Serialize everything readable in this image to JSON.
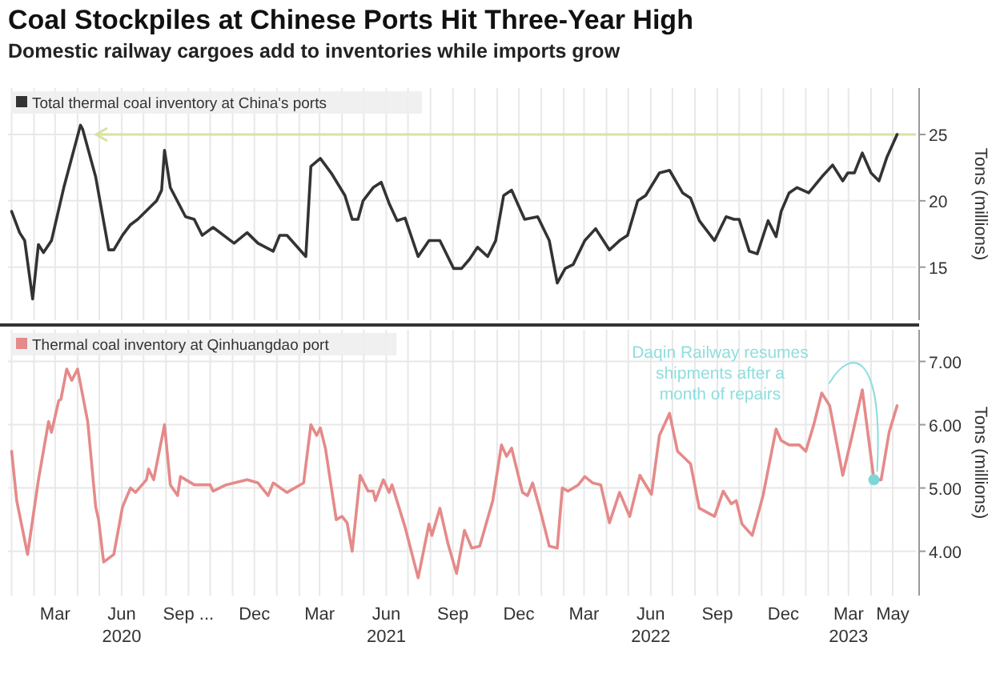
{
  "chart_data": [
    {
      "type": "line",
      "title": "Coal Stockpiles at Chinese Ports Hit Three-Year High",
      "subtitle": "Domestic railway cargoes add to inventories while imports grow",
      "ylabel": "Tons (millions)",
      "legend": "top left",
      "grid": true,
      "tick_labels": "y",
      "xlim": [
        "2019-12-27",
        "2023-06-02"
      ],
      "ylim": [
        11,
        28.5
      ],
      "yticks": [
        15,
        20,
        25
      ],
      "xticks": [
        {
          "value": "2020-01-01",
          "label": null
        },
        {
          "value": "2020-02-01",
          "label": null
        },
        {
          "value": "2020-03-01",
          "label": null
        },
        {
          "value": "2020-04-01",
          "label": null
        },
        {
          "value": "2020-05-01",
          "label": null
        },
        {
          "value": "2020-06-01",
          "label": null
        },
        {
          "value": "2020-07-01",
          "label": null
        },
        {
          "value": "2020-08-01",
          "label": null
        },
        {
          "value": "2020-09-01",
          "label": null
        },
        {
          "value": "2020-10-01",
          "label": null
        },
        {
          "value": "2020-11-01",
          "label": null
        },
        {
          "value": "2020-12-01",
          "label": null
        },
        {
          "value": "2021-01-01",
          "label": null
        },
        {
          "value": "2021-02-01",
          "label": null
        },
        {
          "value": "2021-03-01",
          "label": null
        },
        {
          "value": "2021-04-01",
          "label": null
        },
        {
          "value": "2021-05-01",
          "label": null
        },
        {
          "value": "2021-06-01",
          "label": null
        },
        {
          "value": "2021-07-01",
          "label": null
        },
        {
          "value": "2021-08-01",
          "label": null
        },
        {
          "value": "2021-09-01",
          "label": null
        },
        {
          "value": "2021-10-01",
          "label": null
        },
        {
          "value": "2021-11-01",
          "label": null
        },
        {
          "value": "2021-12-01",
          "label": null
        },
        {
          "value": "2022-01-01",
          "label": null
        },
        {
          "value": "2022-02-01",
          "label": null
        },
        {
          "value": "2022-03-01",
          "label": null
        },
        {
          "value": "2022-04-01",
          "label": null
        },
        {
          "value": "2022-05-01",
          "label": null
        },
        {
          "value": "2022-06-01",
          "label": null
        },
        {
          "value": "2022-07-01",
          "label": null
        },
        {
          "value": "2022-08-01",
          "label": null
        },
        {
          "value": "2022-09-01",
          "label": null
        },
        {
          "value": "2022-10-01",
          "label": null
        },
        {
          "value": "2022-11-01",
          "label": null
        },
        {
          "value": "2022-12-01",
          "label": null
        },
        {
          "value": "2023-01-01",
          "label": null
        },
        {
          "value": "2023-02-01",
          "label": null
        },
        {
          "value": "2023-03-01",
          "label": null
        },
        {
          "value": "2023-04-01",
          "label": null
        },
        {
          "value": "2023-05-01",
          "label": null
        }
      ],
      "ref_lines": [
        {
          "axis": "y",
          "value": 25,
          "color": "#d6e3a0"
        }
      ],
      "series": [
        {
          "name": "Total thermal coal inventory at China's ports",
          "color": "#333333",
          "x": [
            "2020-01-01",
            "2020-01-12",
            "2020-01-19",
            "2020-01-30",
            "2020-02-07",
            "2020-02-14",
            "2020-02-25",
            "2020-03-13",
            "2020-04-05",
            "2020-04-08",
            "2020-04-26",
            "2020-05-14",
            "2020-05-21",
            "2020-06-02",
            "2020-06-13",
            "2020-06-23",
            "2020-07-19",
            "2020-07-26",
            "2020-07-30",
            "2020-08-07",
            "2020-08-28",
            "2020-09-09",
            "2020-09-20",
            "2020-10-05",
            "2020-11-03",
            "2020-11-21",
            "2020-12-06",
            "2020-12-27",
            "2021-01-05",
            "2021-01-15",
            "2021-02-10",
            "2021-02-17",
            "2021-03-02",
            "2021-03-17",
            "2021-04-05",
            "2021-04-15",
            "2021-04-23",
            "2021-04-30",
            "2021-05-14",
            "2021-05-25",
            "2021-06-05",
            "2021-06-16",
            "2021-06-27",
            "2021-07-15",
            "2021-07-30",
            "2021-08-14",
            "2021-09-02",
            "2021-09-13",
            "2021-09-24",
            "2021-10-05",
            "2021-10-19",
            "2021-10-30",
            "2021-11-10",
            "2021-11-21",
            "2021-12-09",
            "2021-12-27",
            "2022-01-12",
            "2022-01-23",
            "2022-02-03",
            "2022-02-14",
            "2022-03-02",
            "2022-03-17",
            "2022-04-05",
            "2022-04-19",
            "2022-04-30",
            "2022-05-14",
            "2022-05-25",
            "2022-06-13",
            "2022-06-27",
            "2022-07-15",
            "2022-07-26",
            "2022-08-07",
            "2022-08-28",
            "2022-09-13",
            "2022-09-24",
            "2022-10-01",
            "2022-10-15",
            "2022-10-26",
            "2022-11-10",
            "2022-11-21",
            "2022-11-28",
            "2022-12-09",
            "2022-12-20",
            "2023-01-05",
            "2023-01-23",
            "2023-02-07",
            "2023-02-21",
            "2023-02-28",
            "2023-03-09",
            "2023-03-20",
            "2023-04-01",
            "2023-04-12",
            "2023-04-23",
            "2023-05-07"
          ],
          "values": [
            19.2,
            17.6,
            17.0,
            12.6,
            16.7,
            16.1,
            17.0,
            21.0,
            25.7,
            25.4,
            21.8,
            16.3,
            16.3,
            17.4,
            18.2,
            18.6,
            20.0,
            20.8,
            23.8,
            21.0,
            18.8,
            18.6,
            17.4,
            18.0,
            16.8,
            17.6,
            16.8,
            16.2,
            17.4,
            17.4,
            15.8,
            22.6,
            23.2,
            22.1,
            20.4,
            18.6,
            18.6,
            20.0,
            21.0,
            21.4,
            19.8,
            18.5,
            18.7,
            15.8,
            17.0,
            17.0,
            14.9,
            14.9,
            15.6,
            16.5,
            15.8,
            17.0,
            20.4,
            20.8,
            18.6,
            18.8,
            17.0,
            13.8,
            14.9,
            15.2,
            17.0,
            17.9,
            16.3,
            17.0,
            17.4,
            20.0,
            20.4,
            22.1,
            22.3,
            20.6,
            20.2,
            18.5,
            17.0,
            18.8,
            18.6,
            18.6,
            16.2,
            16.0,
            18.5,
            17.3,
            19.2,
            20.6,
            21.0,
            20.6,
            21.8,
            22.7,
            21.5,
            22.1,
            22.1,
            23.6,
            22.1,
            21.5,
            23.3,
            25.0
          ]
        }
      ]
    },
    {
      "type": "line",
      "ylabel": "Tons (millions)",
      "legend": "top left",
      "grid": true,
      "xlim": [
        "2019-12-27",
        "2023-06-02"
      ],
      "ylim": [
        3.3,
        7.5
      ],
      "yticks": [
        {
          "value": 4,
          "label": "4.00"
        },
        {
          "value": 5,
          "label": "5.00"
        },
        {
          "value": 6,
          "label": "6.00"
        },
        {
          "value": 7,
          "label": "7.00"
        }
      ],
      "xticks": [
        {
          "value": "2020-01-01",
          "label": null
        },
        {
          "value": "2020-02-01",
          "label": null
        },
        {
          "value": "2020-03-01",
          "label": "Mar"
        },
        {
          "value": "2020-04-01",
          "label": null
        },
        {
          "value": "2020-05-01",
          "label": null
        },
        {
          "value": "2020-06-01",
          "label": "Jun\n2020"
        },
        {
          "value": "2020-07-01",
          "label": null
        },
        {
          "value": "2020-08-01",
          "label": null
        },
        {
          "value": "2020-09-01",
          "label": "Sep ..."
        },
        {
          "value": "2020-10-01",
          "label": null
        },
        {
          "value": "2020-11-01",
          "label": null
        },
        {
          "value": "2020-12-01",
          "label": "Dec"
        },
        {
          "value": "2021-01-01",
          "label": null
        },
        {
          "value": "2021-02-01",
          "label": null
        },
        {
          "value": "2021-03-01",
          "label": "Mar"
        },
        {
          "value": "2021-04-01",
          "label": null
        },
        {
          "value": "2021-05-01",
          "label": null
        },
        {
          "value": "2021-06-01",
          "label": "Jun\n2021"
        },
        {
          "value": "2021-07-01",
          "label": null
        },
        {
          "value": "2021-08-01",
          "label": null
        },
        {
          "value": "2021-09-01",
          "label": "Sep"
        },
        {
          "value": "2021-10-01",
          "label": null
        },
        {
          "value": "2021-11-01",
          "label": null
        },
        {
          "value": "2021-12-01",
          "label": "Dec"
        },
        {
          "value": "2022-01-01",
          "label": null
        },
        {
          "value": "2022-02-01",
          "label": null
        },
        {
          "value": "2022-03-01",
          "label": "Mar"
        },
        {
          "value": "2022-04-01",
          "label": null
        },
        {
          "value": "2022-05-01",
          "label": null
        },
        {
          "value": "2022-06-01",
          "label": "Jun\n2022"
        },
        {
          "value": "2022-07-01",
          "label": null
        },
        {
          "value": "2022-08-01",
          "label": null
        },
        {
          "value": "2022-09-01",
          "label": "Sep"
        },
        {
          "value": "2022-10-01",
          "label": null
        },
        {
          "value": "2022-11-01",
          "label": null
        },
        {
          "value": "2022-12-01",
          "label": "Dec"
        },
        {
          "value": "2023-01-01",
          "label": null
        },
        {
          "value": "2023-02-01",
          "label": null
        },
        {
          "value": "2023-03-01",
          "label": "Mar\n2023"
        },
        {
          "value": "2023-04-01",
          "label": null
        },
        {
          "value": "2023-05-01",
          "label": "May"
        }
      ],
      "annotations": [
        {
          "text": "Daqin Railway resumes shipments after a month of repairs",
          "x": "2023-04-05",
          "y": 5.13
        }
      ],
      "series": [
        {
          "name": "Thermal coal inventory at Qinhuangdao port",
          "color": "#e58a8a",
          "x": [
            "2020-01-01",
            "2020-01-08",
            "2020-01-23",
            "2020-02-07",
            "2020-02-21",
            "2020-02-25",
            "2020-03-06",
            "2020-03-09",
            "2020-03-17",
            "2020-03-24",
            "2020-04-01",
            "2020-04-15",
            "2020-04-26",
            "2020-04-30",
            "2020-05-07",
            "2020-05-21",
            "2020-06-02",
            "2020-06-13",
            "2020-06-20",
            "2020-07-05",
            "2020-07-08",
            "2020-07-15",
            "2020-07-30",
            "2020-08-07",
            "2020-08-17",
            "2020-08-21",
            "2020-09-09",
            "2020-10-01",
            "2020-10-05",
            "2020-10-23",
            "2020-11-21",
            "2020-12-06",
            "2020-12-20",
            "2020-12-27",
            "2021-01-15",
            "2021-02-07",
            "2021-02-17",
            "2021-02-25",
            "2021-03-02",
            "2021-03-09",
            "2021-03-24",
            "2021-04-01",
            "2021-04-08",
            "2021-04-15",
            "2021-04-26",
            "2021-05-07",
            "2021-05-14",
            "2021-05-17",
            "2021-05-28",
            "2021-06-05",
            "2021-06-09",
            "2021-06-27",
            "2021-07-15",
            "2021-07-30",
            "2021-08-03",
            "2021-08-14",
            "2021-08-25",
            "2021-09-06",
            "2021-09-17",
            "2021-09-27",
            "2021-10-08",
            "2021-10-26",
            "2021-11-07",
            "2021-11-14",
            "2021-11-21",
            "2021-12-06",
            "2021-12-13",
            "2021-12-20",
            "2022-01-01",
            "2022-01-12",
            "2022-01-23",
            "2022-01-30",
            "2022-02-07",
            "2022-02-21",
            "2022-03-02",
            "2022-03-13",
            "2022-03-24",
            "2022-04-05",
            "2022-04-19",
            "2022-05-03",
            "2022-05-17",
            "2022-06-02",
            "2022-06-13",
            "2022-06-27",
            "2022-07-08",
            "2022-07-26",
            "2022-08-07",
            "2022-08-28",
            "2022-09-09",
            "2022-09-20",
            "2022-09-27",
            "2022-10-05",
            "2022-10-19",
            "2022-11-03",
            "2022-11-21",
            "2022-11-28",
            "2022-12-09",
            "2022-12-23",
            "2023-01-01",
            "2023-01-12",
            "2023-01-23",
            "2023-02-03",
            "2023-02-21",
            "2023-03-06",
            "2023-03-20",
            "2023-04-05",
            "2023-04-15",
            "2023-04-26",
            "2023-05-07"
          ],
          "values": [
            5.58,
            4.8,
            3.95,
            5.13,
            6.05,
            5.88,
            6.38,
            6.4,
            6.88,
            6.7,
            6.88,
            6.05,
            4.7,
            4.5,
            3.83,
            3.95,
            4.7,
            5.0,
            4.93,
            5.13,
            5.3,
            5.13,
            6.0,
            5.05,
            4.88,
            5.18,
            5.05,
            5.05,
            4.95,
            5.05,
            5.13,
            5.08,
            4.88,
            5.08,
            4.93,
            5.08,
            6.0,
            5.83,
            5.95,
            5.63,
            4.5,
            4.55,
            4.45,
            4.0,
            5.2,
            4.95,
            4.95,
            4.8,
            5.13,
            4.93,
            5.05,
            4.38,
            3.58,
            4.43,
            4.25,
            4.68,
            4.13,
            3.65,
            4.33,
            4.05,
            4.08,
            4.8,
            5.68,
            5.5,
            5.63,
            4.93,
            4.88,
            5.08,
            4.58,
            4.08,
            4.05,
            5.0,
            4.95,
            5.05,
            5.18,
            5.08,
            5.05,
            4.45,
            4.93,
            4.55,
            5.2,
            4.9,
            5.83,
            6.18,
            5.58,
            5.38,
            4.68,
            4.55,
            4.95,
            4.75,
            4.8,
            4.43,
            4.25,
            4.88,
            5.93,
            5.75,
            5.68,
            5.68,
            5.58,
            6.0,
            6.5,
            6.3,
            5.2,
            5.83,
            6.55,
            5.13,
            5.13,
            5.88,
            6.3
          ]
        }
      ]
    }
  ]
}
